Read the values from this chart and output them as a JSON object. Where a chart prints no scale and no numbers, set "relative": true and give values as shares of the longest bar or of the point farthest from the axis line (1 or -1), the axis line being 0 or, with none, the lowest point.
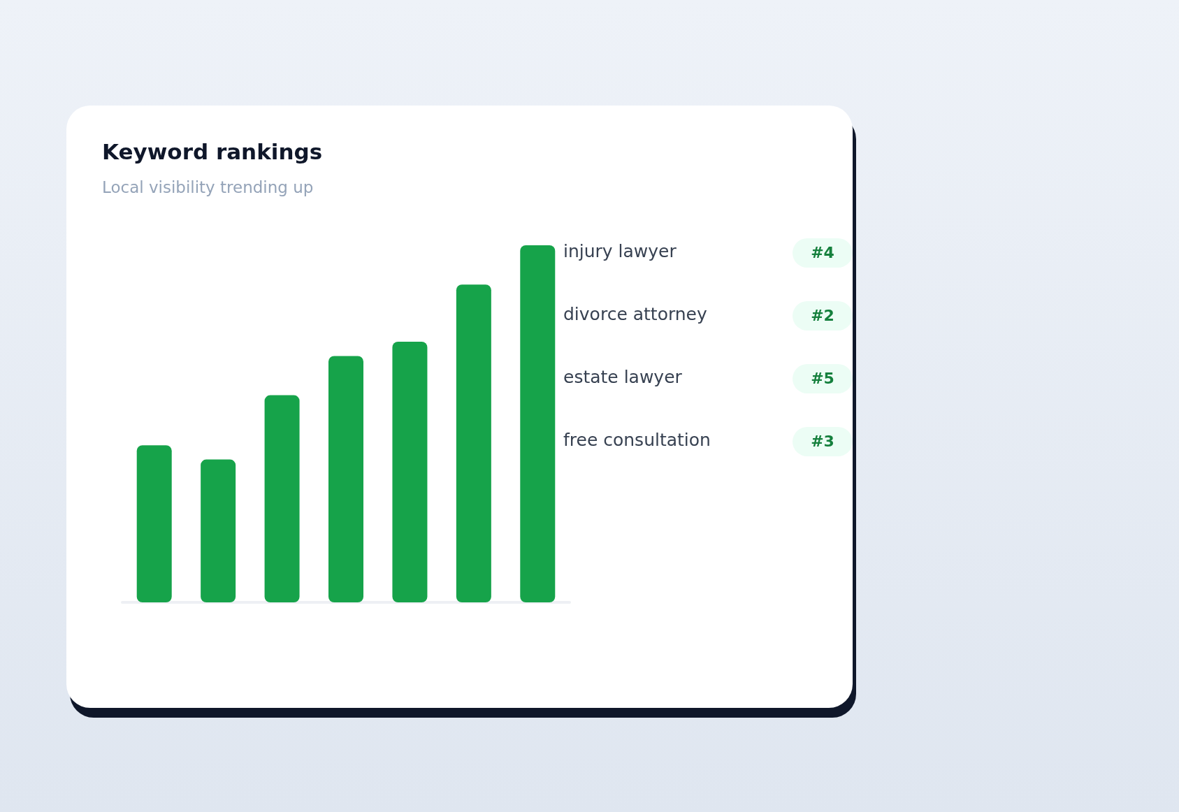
{
  "chart_data": [
    {
      "type": "bar",
      "title": "Keyword rankings",
      "subtitle": "Local visibility trending up",
      "relative": true,
      "categories": [
        null,
        null,
        null,
        null,
        null,
        null,
        null
      ],
      "values": [
        0.44,
        0.4,
        0.58,
        0.69,
        0.73,
        0.89,
        1.0
      ],
      "color": "#16a34a"
    },
    {
      "type": "other",
      "annotations": [
        "injury lawyer",
        "#4",
        "divorce attorney",
        "#2",
        "estate lawyer",
        "#5",
        "free consultation",
        "#3"
      ]
    }
  ]
}
